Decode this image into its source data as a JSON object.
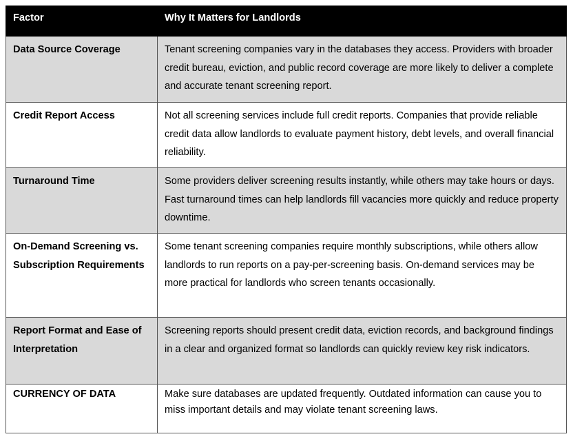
{
  "table": {
    "header": [
      "Factor",
      "Why It Matters for Landlords"
    ],
    "rows": [
      [
        "Data Source Coverage",
        "Tenant screening companies vary in the databases they access. Providers with broader credit bureau, eviction, and public record coverage are more likely to deliver a complete and accurate tenant screening report."
      ],
      [
        "Credit Report Access",
        "Not all screening services include full credit reports. Companies that provide reliable credit data allow landlords to evaluate payment history, debt levels, and overall financial reliability."
      ],
      [
        "Turnaround Time",
        "Some providers deliver screening results instantly, while others may take hours or days. Fast turnaround times can help landlords fill vacancies more quickly and reduce property downtime."
      ],
      [
        "On-Demand Screening vs. Subscription Requirements",
        "Some tenant screening companies require monthly subscriptions, while others allow landlords to run reports on a pay-per-screening basis. On-demand services may be more practical for landlords who screen tenants occasionally."
      ],
      [
        "Report Format and Ease of Interpretation",
        "Screening reports should present credit data, eviction records, and background findings in a clear and organized format so landlords can quickly review key risk indicators."
      ],
      [
        "CURRENCY OF DATA",
        "Make sure databases are updated frequently. Outdated information can cause you to miss important details and may violate tenant screening laws."
      ]
    ]
  }
}
